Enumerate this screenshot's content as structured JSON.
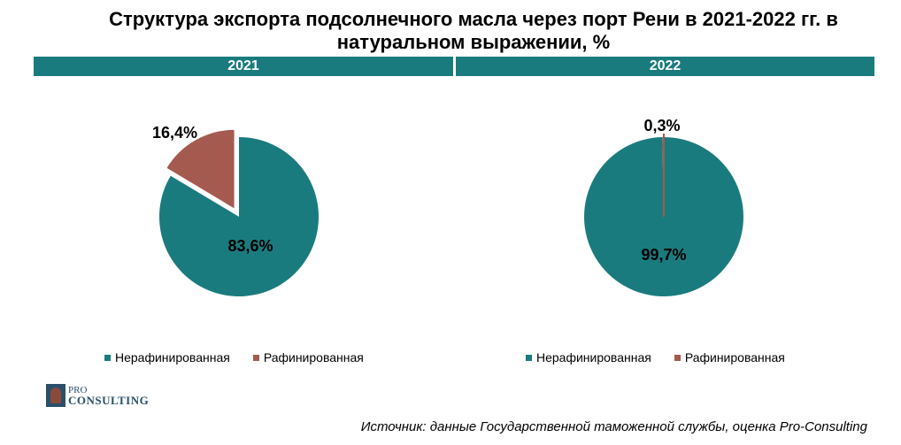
{
  "title": "Структура экспорта подсолнечного масла через порт Рени в 2021-2022 гг. в натуральном выражении, %",
  "logo": {
    "top": "PRO",
    "bottom": "CONSULTING"
  },
  "source": "Источник: данные Государственной таможенной службы, оценка Pro-Consulting",
  "colors": {
    "teal": "#1a7b7e",
    "red": "#a55a50"
  },
  "chart_data": [
    {
      "type": "pie",
      "title": "2021",
      "categories": [
        "Нерафинированная",
        "Рафинированная"
      ],
      "values": [
        83.6,
        16.4
      ],
      "labels": [
        "83,6%",
        "16,4%"
      ],
      "colors": [
        "#1a7b7e",
        "#a55a50"
      ],
      "exploded": [
        false,
        true
      ],
      "legend": "bottom"
    },
    {
      "type": "pie",
      "title": "2022",
      "categories": [
        "Нерафинированная",
        "Рафинированная"
      ],
      "values": [
        99.7,
        0.3
      ],
      "labels": [
        "99,7%",
        "0,3%"
      ],
      "colors": [
        "#1a7b7e",
        "#a55a50"
      ],
      "exploded": [
        false,
        false
      ],
      "legend": "bottom"
    }
  ]
}
